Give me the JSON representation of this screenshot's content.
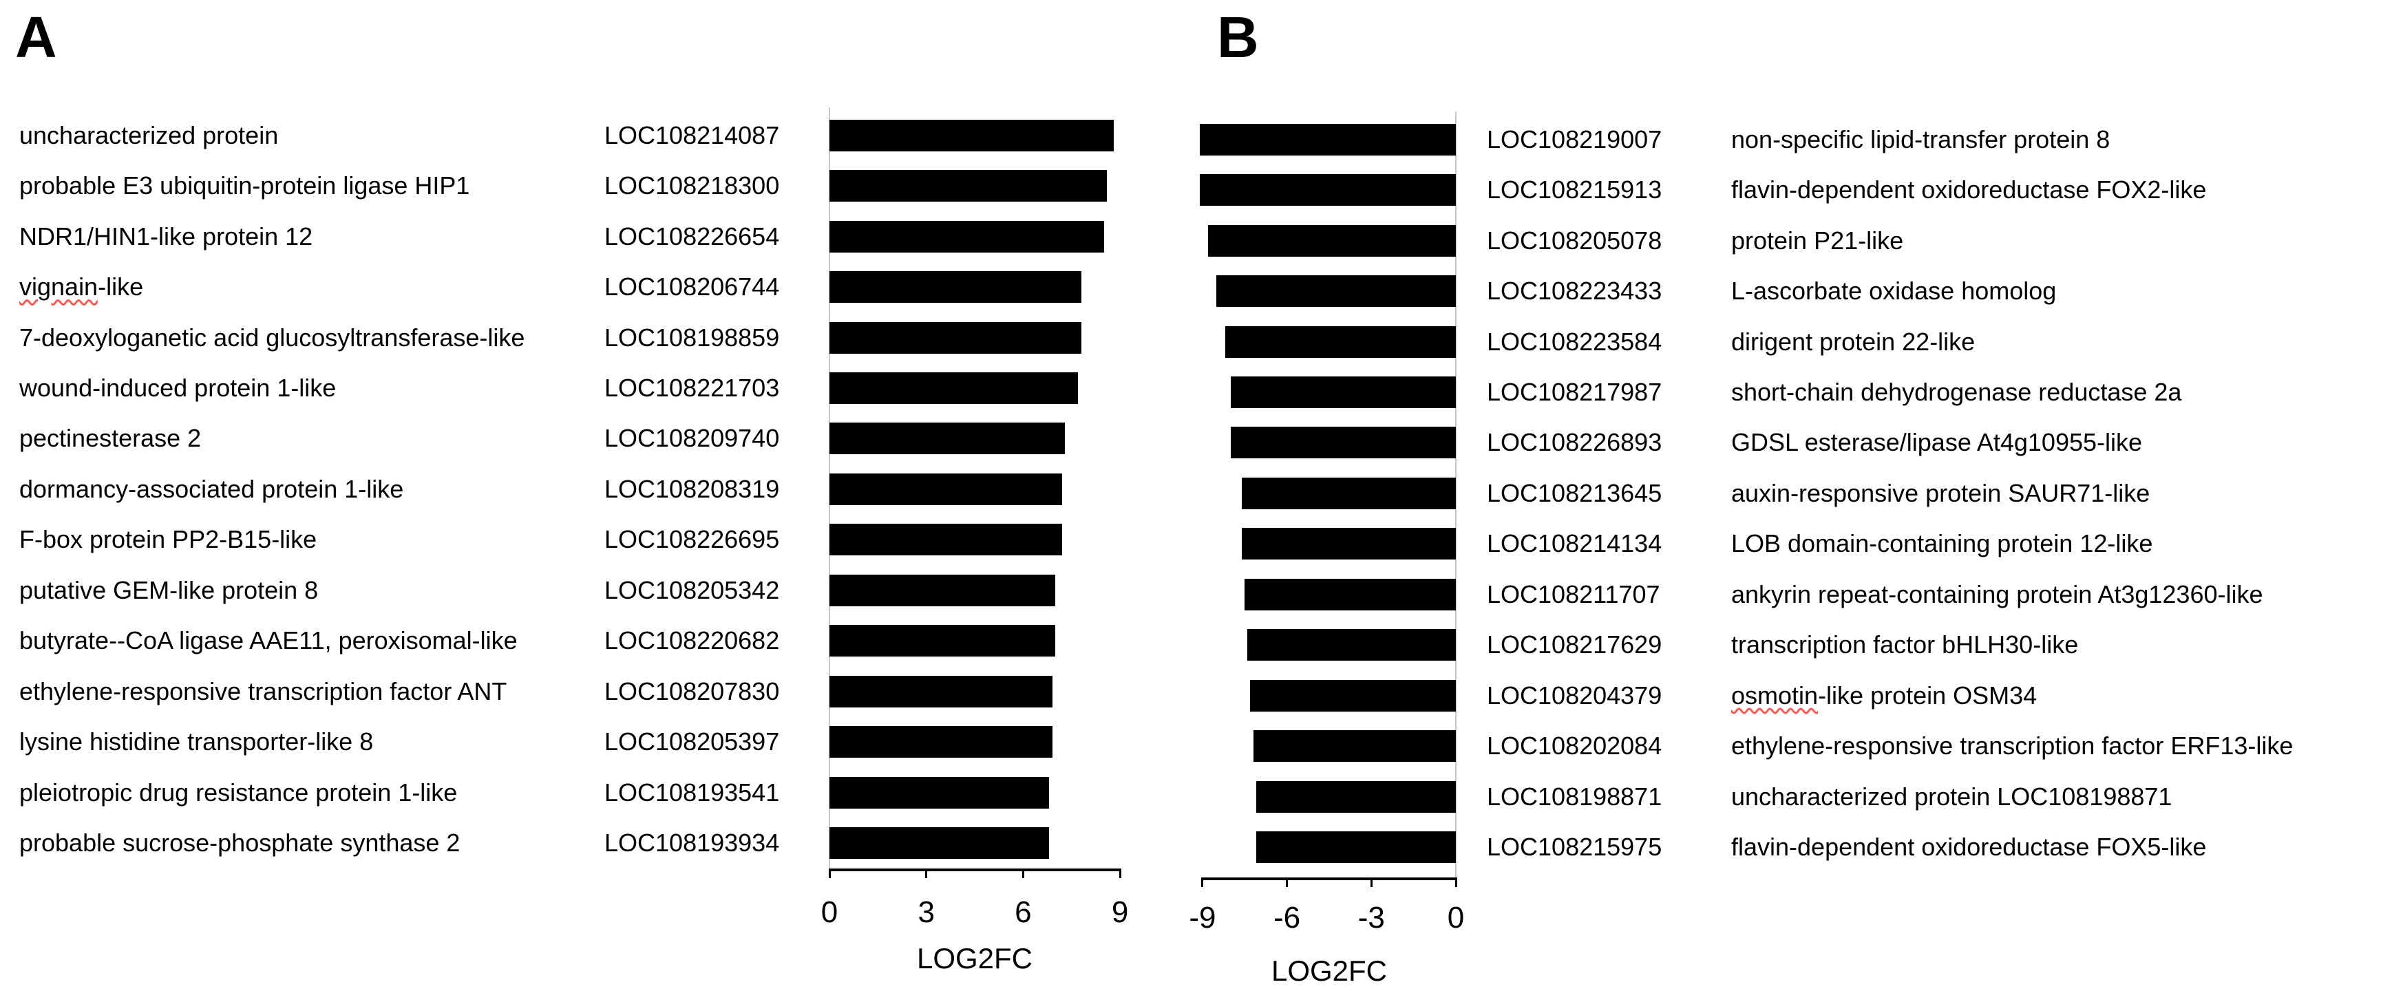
{
  "figure_title": "",
  "chart_data": [
    {
      "type": "bar",
      "orientation": "horizontal",
      "panel_label": "A",
      "xlabel": "LOG2FC",
      "xlim": [
        0,
        9
      ],
      "xticks": [
        "0",
        "3",
        "6",
        "9"
      ],
      "bar_color": "#000000",
      "legend": "none",
      "grid": "off",
      "rows": [
        {
          "description": "uncharacterized protein",
          "gene": "LOC108214087",
          "log2fc": 8.8
        },
        {
          "description": "probable E3 ubiquitin-protein ligase HIP1",
          "gene": "LOC108218300",
          "log2fc": 8.6
        },
        {
          "description": "NDR1/HIN1-like protein 12",
          "gene": "LOC108226654",
          "log2fc": 8.5
        },
        {
          "description": "vignain-like",
          "gene": "LOC108206744",
          "log2fc": 7.8,
          "squiggle": "vignain"
        },
        {
          "description": "7-deoxyloganetic acid glucosyltransferase-like",
          "gene": "LOC108198859",
          "log2fc": 7.8
        },
        {
          "description": "wound-induced protein 1-like",
          "gene": "LOC108221703",
          "log2fc": 7.7
        },
        {
          "description": "pectinesterase 2",
          "gene": "LOC108209740",
          "log2fc": 7.3
        },
        {
          "description": "dormancy-associated protein 1-like",
          "gene": "LOC108208319",
          "log2fc": 7.2
        },
        {
          "description": "F-box protein PP2-B15-like",
          "gene": "LOC108226695",
          "log2fc": 7.2
        },
        {
          "description": "putative GEM-like protein 8",
          "gene": "LOC108205342",
          "log2fc": 7.0
        },
        {
          "description": "butyrate--CoA ligase AAE11, peroxisomal-like",
          "gene": "LOC108220682",
          "log2fc": 7.0
        },
        {
          "description": "ethylene-responsive transcription factor ANT",
          "gene": "LOC108207830",
          "log2fc": 6.9
        },
        {
          "description": "lysine histidine transporter-like 8",
          "gene": "LOC108205397",
          "log2fc": 6.9
        },
        {
          "description": "pleiotropic drug resistance protein 1-like",
          "gene": "LOC108193541",
          "log2fc": 6.8
        },
        {
          "description": "probable sucrose-phosphate synthase 2",
          "gene": "LOC108193934",
          "log2fc": 6.8
        }
      ]
    },
    {
      "type": "bar",
      "orientation": "horizontal",
      "panel_label": "B",
      "xlabel": "LOG2FC",
      "xlim": [
        -9,
        0
      ],
      "xticks": [
        "-9",
        "-6",
        "-3",
        "0"
      ],
      "bar_color": "#000000",
      "legend": "none",
      "grid": "off",
      "rows": [
        {
          "description": "non-specific lipid-transfer protein 8",
          "gene": "LOC108219007",
          "log2fc": -9.1
        },
        {
          "description": "flavin-dependent oxidoreductase FOX2-like",
          "gene": "LOC108215913",
          "log2fc": -9.1
        },
        {
          "description": "protein P21-like",
          "gene": "LOC108205078",
          "log2fc": -8.8
        },
        {
          "description": "L-ascorbate oxidase homolog",
          "gene": "LOC108223433",
          "log2fc": -8.5
        },
        {
          "description": "dirigent protein 22-like",
          "gene": "LOC108223584",
          "log2fc": -8.2
        },
        {
          "description": "short-chain dehydrogenase reductase 2a",
          "gene": "LOC108217987",
          "log2fc": -8.0
        },
        {
          "description": "GDSL esterase/lipase At4g10955-like",
          "gene": "LOC108226893",
          "log2fc": -8.0
        },
        {
          "description": "auxin-responsive protein SAUR71-like",
          "gene": "LOC108213645",
          "log2fc": -7.6
        },
        {
          "description": "LOB domain-containing protein 12-like",
          "gene": "LOC108214134",
          "log2fc": -7.6
        },
        {
          "description": "ankyrin repeat-containing protein At3g12360-like",
          "gene": "LOC108211707",
          "log2fc": -7.5
        },
        {
          "description": "transcription factor bHLH30-like",
          "gene": "LOC108217629",
          "log2fc": -7.4
        },
        {
          "description": "osmotin-like protein OSM34",
          "gene": "LOC108204379",
          "log2fc": -7.3,
          "squiggle": "osmotin"
        },
        {
          "description": "ethylene-responsive transcription factor ERF13-like",
          "gene": "LOC108202084",
          "log2fc": -7.2
        },
        {
          "description": "uncharacterized protein LOC108198871",
          "gene": "LOC108198871",
          "log2fc": -7.1
        },
        {
          "description": "flavin-dependent oxidoreductase FOX5-like",
          "gene": "LOC108215975",
          "log2fc": -7.1
        }
      ]
    }
  ]
}
